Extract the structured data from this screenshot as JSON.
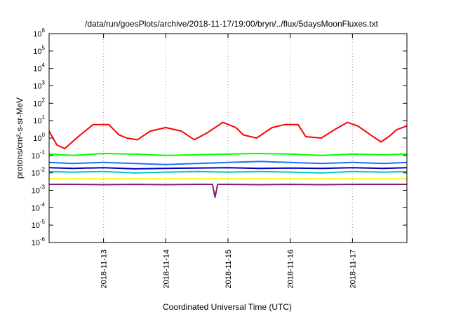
{
  "chart_data": {
    "type": "line",
    "title": "/data/run/goesPlots/archive/2018-11-17/19:00/bryn/../flux/5daysMoonFluxes.txt",
    "xlabel": "Coordinated Universal Time (UTC)",
    "ylabel": "protons/cm²-s-sr-MeV",
    "y_scale": "log",
    "ylim": [
      1e-06,
      1000000.0
    ],
    "xlim": [
      "2018-11-12 03:00",
      "2018-11-17 21:00"
    ],
    "grid": "x-only dotted",
    "x_ticks": [
      "2018-11-13",
      "2018-11-14",
      "2018-11-15",
      "2018-11-16",
      "2018-11-17"
    ],
    "y_ticks": [
      {
        "base": "10",
        "exp": "-6"
      },
      {
        "base": "10",
        "exp": "-5"
      },
      {
        "base": "10",
        "exp": "-4"
      },
      {
        "base": "10",
        "exp": "-3"
      },
      {
        "base": "10",
        "exp": "-2"
      },
      {
        "base": "10",
        "exp": "-1"
      },
      {
        "base": "10",
        "exp": "0"
      },
      {
        "base": "10",
        "exp": "1"
      },
      {
        "base": "10",
        "exp": "2"
      },
      {
        "base": "10",
        "exp": "3"
      },
      {
        "base": "10",
        "exp": "4"
      },
      {
        "base": "10",
        "exp": "5"
      },
      {
        "base": "10",
        "exp": "6"
      }
    ],
    "series": [
      {
        "color": "#ff0000",
        "x": [
          "2018-11-12 03:00",
          "2018-11-12 06:00",
          "2018-11-12 09:00",
          "2018-11-12 15:00",
          "2018-11-12 20:00",
          "2018-11-13 02:00",
          "2018-11-13 06:00",
          "2018-11-13 09:00",
          "2018-11-13 13:00",
          "2018-11-13 18:00",
          "2018-11-14 00:00",
          "2018-11-14 06:00",
          "2018-11-14 11:00",
          "2018-11-14 16:00",
          "2018-11-14 22:00",
          "2018-11-15 03:00",
          "2018-11-15 06:00",
          "2018-11-15 11:00",
          "2018-11-15 17:00",
          "2018-11-15 22:00",
          "2018-11-16 03:00",
          "2018-11-16 06:00",
          "2018-11-16 12:00",
          "2018-11-16 17:00",
          "2018-11-16 22:00",
          "2018-11-17 02:00",
          "2018-11-17 07:00",
          "2018-11-17 11:00",
          "2018-11-17 14:00",
          "2018-11-17 17:00",
          "2018-11-17 21:00"
        ],
        "values": [
          2.5,
          0.4,
          0.25,
          1.5,
          6,
          6,
          1.5,
          1,
          0.8,
          2.5,
          4,
          2.5,
          0.8,
          2,
          8,
          4,
          1.5,
          1,
          4,
          6,
          6,
          1.2,
          1,
          3,
          8,
          5,
          1.5,
          0.6,
          1.2,
          3,
          5
        ]
      },
      {
        "color": "#00ff00",
        "x": [
          "2018-11-12 03:00",
          "2018-11-12 12:00",
          "2018-11-13 00:00",
          "2018-11-13 12:00",
          "2018-11-14 00:00",
          "2018-11-14 12:00",
          "2018-11-15 00:00",
          "2018-11-15 12:00",
          "2018-11-16 00:00",
          "2018-11-16 12:00",
          "2018-11-17 00:00",
          "2018-11-17 12:00",
          "2018-11-17 21:00"
        ],
        "values": [
          0.12,
          0.1,
          0.13,
          0.12,
          0.1,
          0.11,
          0.12,
          0.13,
          0.12,
          0.1,
          0.12,
          0.11,
          0.12
        ]
      },
      {
        "color": "#1e6fff",
        "x": [
          "2018-11-12 03:00",
          "2018-11-12 12:00",
          "2018-11-13 00:00",
          "2018-11-13 12:00",
          "2018-11-14 00:00",
          "2018-11-14 12:00",
          "2018-11-15 00:00",
          "2018-11-15 12:00",
          "2018-11-16 00:00",
          "2018-11-16 12:00",
          "2018-11-17 00:00",
          "2018-11-17 12:00",
          "2018-11-17 21:00"
        ],
        "values": [
          0.04,
          0.035,
          0.04,
          0.035,
          0.03,
          0.035,
          0.04,
          0.045,
          0.04,
          0.035,
          0.04,
          0.035,
          0.04
        ]
      },
      {
        "color": "#0000cc",
        "x": [
          "2018-11-12 03:00",
          "2018-11-12 12:00",
          "2018-11-13 00:00",
          "2018-11-13 12:00",
          "2018-11-14 00:00",
          "2018-11-14 12:00",
          "2018-11-15 00:00",
          "2018-11-15 12:00",
          "2018-11-16 00:00",
          "2018-11-16 12:00",
          "2018-11-17 00:00",
          "2018-11-17 12:00",
          "2018-11-17 21:00"
        ],
        "values": [
          0.02,
          0.018,
          0.02,
          0.017,
          0.018,
          0.019,
          0.02,
          0.018,
          0.019,
          0.018,
          0.02,
          0.018,
          0.02
        ]
      },
      {
        "color": "#00c8c8",
        "x": [
          "2018-11-12 03:00",
          "2018-11-12 12:00",
          "2018-11-13 00:00",
          "2018-11-13 12:00",
          "2018-11-14 00:00",
          "2018-11-14 12:00",
          "2018-11-15 00:00",
          "2018-11-15 12:00",
          "2018-11-16 00:00",
          "2018-11-16 12:00",
          "2018-11-17 00:00",
          "2018-11-17 12:00",
          "2018-11-17 21:00"
        ],
        "values": [
          0.012,
          0.011,
          0.012,
          0.01,
          0.011,
          0.012,
          0.011,
          0.012,
          0.011,
          0.01,
          0.012,
          0.011,
          0.012
        ]
      },
      {
        "color": "#ffff00",
        "x": [
          "2018-11-12 03:00",
          "2018-11-12 12:00",
          "2018-11-13 00:00",
          "2018-11-13 12:00",
          "2018-11-14 00:00",
          "2018-11-14 12:00",
          "2018-11-15 00:00",
          "2018-11-15 12:00",
          "2018-11-16 00:00",
          "2018-11-16 12:00",
          "2018-11-17 00:00",
          "2018-11-17 12:00",
          "2018-11-17 21:00"
        ],
        "values": [
          0.0045,
          0.0045,
          0.0045,
          0.0045,
          0.0045,
          0.0045,
          0.0045,
          0.0045,
          0.0045,
          0.0045,
          0.0045,
          0.0045,
          0.0045
        ]
      },
      {
        "color": "#8b1a6b",
        "x": [
          "2018-11-12 03:00",
          "2018-11-12 12:00",
          "2018-11-13 00:00",
          "2018-11-13 12:00",
          "2018-11-14 00:00",
          "2018-11-14 12:00",
          "2018-11-14 18:00",
          "2018-11-14 19:00",
          "2018-11-14 20:00",
          "2018-11-15 00:00",
          "2018-11-15 12:00",
          "2018-11-16 00:00",
          "2018-11-16 12:00",
          "2018-11-17 00:00",
          "2018-11-17 12:00",
          "2018-11-17 21:00"
        ],
        "values": [
          0.0022,
          0.0022,
          0.0021,
          0.0022,
          0.0021,
          0.0022,
          0.0022,
          0.0004,
          0.0022,
          0.0022,
          0.0021,
          0.0022,
          0.0021,
          0.0022,
          0.0022,
          0.0022
        ]
      }
    ]
  }
}
